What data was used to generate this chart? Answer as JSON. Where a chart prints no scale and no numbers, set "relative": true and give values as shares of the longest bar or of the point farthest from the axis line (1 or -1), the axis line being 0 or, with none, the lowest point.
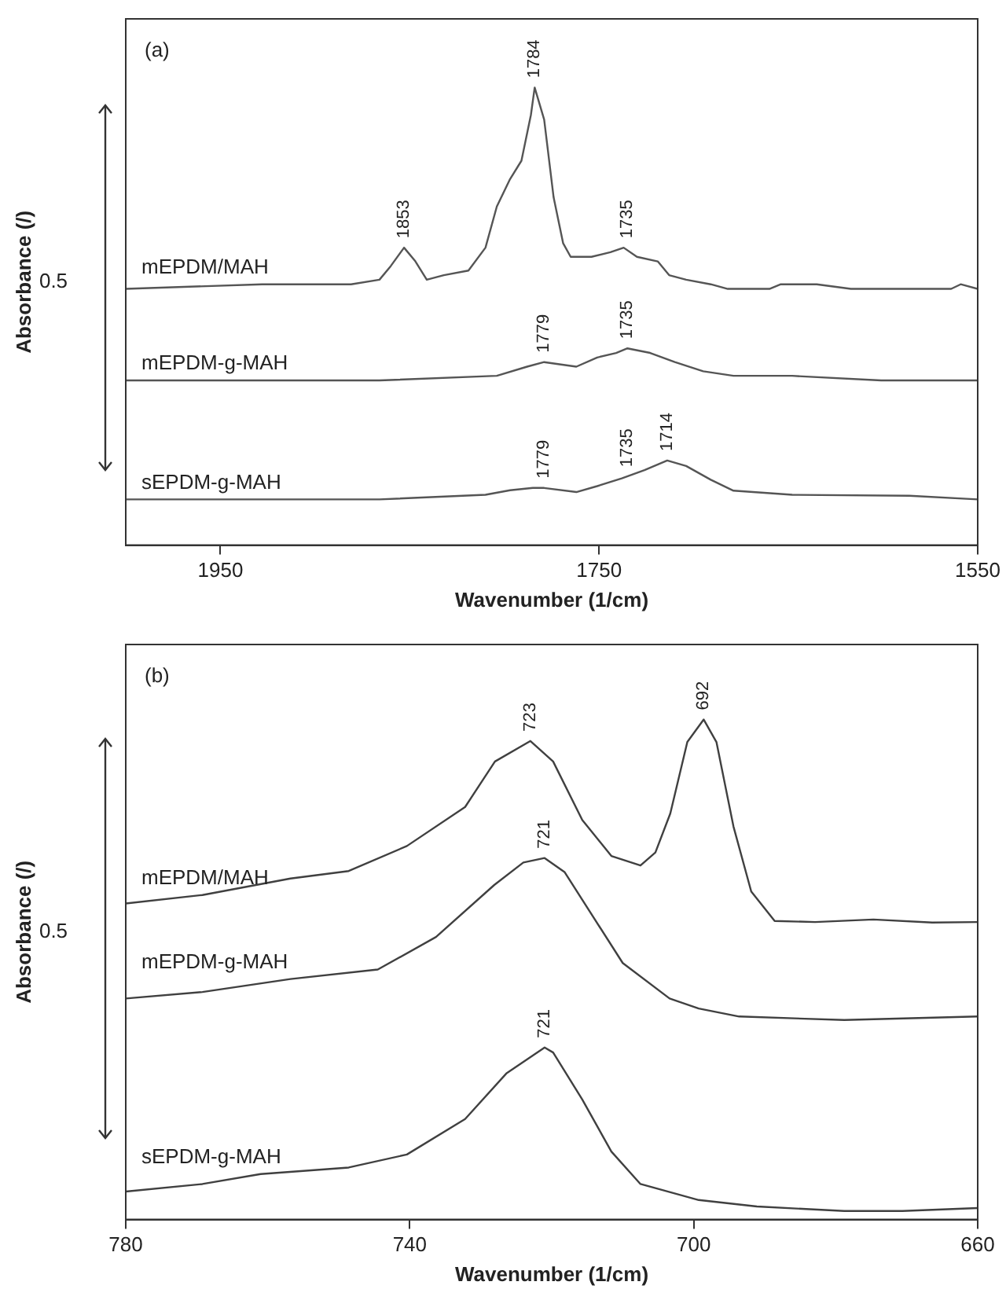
{
  "chart_data": [
    {
      "type": "line",
      "title": "(a)",
      "xlabel": "Wavenumber (1/cm)",
      "ylabel": "Absorbance (/)",
      "relative": true,
      "xlim": [
        2000,
        1550
      ],
      "xticks": [
        1950,
        1750,
        1550
      ],
      "grid": false,
      "legend": false,
      "marker": "none",
      "line_style": "solid",
      "series": [
        {
          "name": "mEPDM/MAH",
          "color": "#555555",
          "x": [
            2000,
            1928,
            1881,
            1866,
            1860,
            1853,
            1847,
            1841,
            1832,
            1819,
            1810,
            1804,
            1797,
            1791,
            1786,
            1784,
            1779,
            1774,
            1769,
            1765,
            1754,
            1744,
            1737,
            1730,
            1719,
            1713,
            1704,
            1691,
            1682,
            1660,
            1654,
            1635,
            1617,
            1601,
            1586,
            1564,
            1559,
            1550
          ],
          "values": [
            0.56,
            0.57,
            0.57,
            0.58,
            0.61,
            0.65,
            0.62,
            0.58,
            0.59,
            0.6,
            0.65,
            0.74,
            0.8,
            0.84,
            0.94,
            1,
            0.93,
            0.76,
            0.66,
            0.63,
            0.63,
            0.64,
            0.65,
            0.63,
            0.62,
            0.59,
            0.58,
            0.57,
            0.56,
            0.56,
            0.57,
            0.57,
            0.56,
            0.56,
            0.56,
            0.56,
            0.57,
            0.56
          ]
        },
        {
          "name": "mEPDM-g-MAH",
          "color": "#555555",
          "x": [
            2000,
            1866,
            1804,
            1788,
            1779,
            1762,
            1751,
            1741,
            1735,
            1723,
            1710,
            1695,
            1679,
            1648,
            1601,
            1550
          ],
          "values": [
            0.36,
            0.36,
            0.37,
            0.39,
            0.4,
            0.39,
            0.41,
            0.42,
            0.43,
            0.42,
            0.4,
            0.38,
            0.37,
            0.37,
            0.36,
            0.36
          ]
        },
        {
          "name": "sEPDM-g-MAH",
          "color": "#555555",
          "x": [
            2000,
            1866,
            1810,
            1797,
            1785,
            1779,
            1762,
            1751,
            1738,
            1726,
            1714,
            1704,
            1691,
            1679,
            1648,
            1586,
            1550
          ],
          "values": [
            0.1,
            0.1,
            0.11,
            0.12,
            0.125,
            0.125,
            0.116,
            0.129,
            0.146,
            0.164,
            0.185,
            0.173,
            0.143,
            0.119,
            0.11,
            0.108,
            0.1
          ]
        }
      ],
      "annotations": [
        {
          "text": "1853",
          "x": 1853,
          "y": 0.65
        },
        {
          "text": "1784",
          "x": 1784,
          "y": 1
        },
        {
          "text": "1735",
          "x": 1735,
          "y": 0.65
        },
        {
          "text": "1779",
          "x": 1779,
          "y": 0.4
        },
        {
          "text": "1735",
          "x": 1735,
          "y": 0.43
        },
        {
          "text": "1779",
          "x": 1779,
          "y": 0.125
        },
        {
          "text": "1735",
          "x": 1735,
          "y": 0.15
        },
        {
          "text": "1714",
          "x": 1714,
          "y": 0.185
        },
        "0.5"
      ]
    },
    {
      "type": "line",
      "title": "(b)",
      "xlabel": "Wavenumber (1/cm)",
      "ylabel": "Absorbance (/)",
      "relative": true,
      "xlim": [
        780,
        660
      ],
      "xticks": [
        780,
        740,
        700,
        660
      ],
      "grid": false,
      "legend": false,
      "marker": "none",
      "line_style": "solid",
      "series": [
        {
          "name": "mEPDM/MAH",
          "color": "#404040",
          "x": [
            780,
            769.2,
            756.8,
            748.6,
            740.4,
            732.2,
            728,
            723,
            719.8,
            715.7,
            711.6,
            707.5,
            705.4,
            703.3,
            700.9,
            698.6,
            696.8,
            694.4,
            691.9,
            688.6,
            682.9,
            674.7,
            666.4,
            660
          ],
          "values": [
            0.632,
            0.649,
            0.682,
            0.697,
            0.747,
            0.825,
            0.916,
            0.957,
            0.916,
            0.799,
            0.727,
            0.708,
            0.734,
            0.812,
            0.955,
            1,
            0.955,
            0.786,
            0.656,
            0.597,
            0.595,
            0.6,
            0.594,
            0.595
          ]
        },
        {
          "name": "mEPDM-g-MAH",
          "color": "#404040",
          "x": [
            780,
            769.2,
            756.8,
            744.5,
            736.3,
            728.1,
            724,
            721,
            718.2,
            714.1,
            710,
            703.4,
            699.3,
            693.6,
            678.8,
            660
          ],
          "values": [
            0.442,
            0.455,
            0.481,
            0.5,
            0.565,
            0.669,
            0.714,
            0.723,
            0.695,
            0.604,
            0.513,
            0.442,
            0.422,
            0.406,
            0.399,
            0.406
          ]
        },
        {
          "name": "sEPDM-g-MAH",
          "color": "#404040",
          "x": [
            780,
            769.2,
            761,
            748.6,
            740.4,
            732.2,
            726.4,
            721,
            719.8,
            715.7,
            711.6,
            707.5,
            699.3,
            691.1,
            678.8,
            670.6,
            660
          ],
          "values": [
            0.056,
            0.071,
            0.091,
            0.104,
            0.13,
            0.201,
            0.292,
            0.344,
            0.334,
            0.24,
            0.136,
            0.071,
            0.039,
            0.026,
            0.017,
            0.017,
            0.023
          ]
        }
      ],
      "annotations": [
        {
          "text": "723",
          "x": 723,
          "y": 0.957
        },
        {
          "text": "692",
          "x": 698.6,
          "y": 1
        },
        {
          "text": "721",
          "x": 721,
          "y": 0.723
        },
        {
          "text": "721",
          "x": 721,
          "y": 0.344
        },
        "0.5"
      ]
    }
  ]
}
